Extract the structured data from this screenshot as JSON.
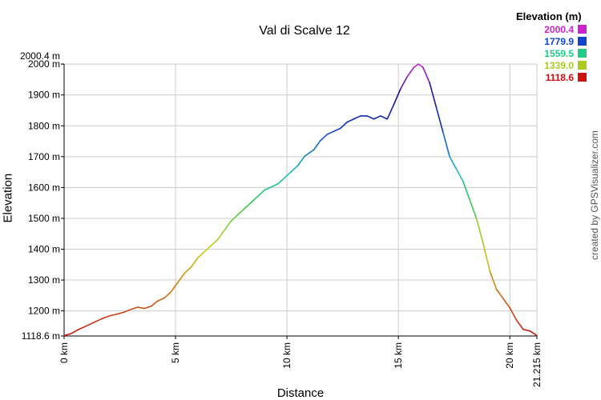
{
  "chart_data": {
    "type": "line",
    "title": "Val di Scalve 12",
    "xlabel": "Distance",
    "ylabel": "Elevation",
    "xlim": [
      0,
      21.215
    ],
    "ylim": [
      1118.6,
      2000.4
    ],
    "x_ticks": [
      {
        "value": 0,
        "label": "0 km"
      },
      {
        "value": 5,
        "label": "5 km"
      },
      {
        "value": 10,
        "label": "10 km"
      },
      {
        "value": 15,
        "label": "15 km"
      },
      {
        "value": 20,
        "label": "20 km"
      },
      {
        "value": 21.215,
        "label": "21.215 km"
      }
    ],
    "y_ticks": [
      {
        "value": 1118.6,
        "label": "1118.6 m"
      },
      {
        "value": 1200,
        "label": "1200 m"
      },
      {
        "value": 1300,
        "label": "1300 m"
      },
      {
        "value": 1400,
        "label": "1400 m"
      },
      {
        "value": 1500,
        "label": "1500 m"
      },
      {
        "value": 1600,
        "label": "1600 m"
      },
      {
        "value": 1700,
        "label": "1700 m"
      },
      {
        "value": 1800,
        "label": "1800 m"
      },
      {
        "value": 1900,
        "label": "1900 m"
      },
      {
        "value": 2000,
        "label": "2000 m"
      },
      {
        "value": 2000.4,
        "label": "2000.4 m"
      }
    ],
    "grid": true,
    "legend_position": "top-right",
    "legend": {
      "title": "Elevation (m)",
      "items": [
        {
          "value": "2000.4",
          "color": "#cc22cc"
        },
        {
          "value": "1779.9",
          "color": "#1144cc"
        },
        {
          "value": "1559.5",
          "color": "#22cc88"
        },
        {
          "value": "1339.0",
          "color": "#aacc22"
        },
        {
          "value": "1118.6",
          "color": "#cc1111"
        }
      ]
    },
    "series": [
      {
        "x": [
          0,
          0.3,
          0.6,
          0.9,
          1.2,
          1.5,
          1.8,
          2.1,
          2.4,
          2.7,
          3.0,
          3.3,
          3.6,
          3.9,
          4.2,
          4.5,
          4.8,
          5.1,
          5.4,
          5.7,
          6.0,
          6.3,
          6.6,
          6.9,
          7.2,
          7.5,
          7.8,
          8.1,
          8.4,
          8.7,
          9.0,
          9.3,
          9.6,
          9.9,
          10.2,
          10.5,
          10.8,
          11.0,
          11.2,
          11.5,
          11.8,
          12.1,
          12.4,
          12.7,
          13.0,
          13.3,
          13.6,
          13.9,
          14.2,
          14.5,
          14.8,
          15.1,
          15.4,
          15.7,
          15.9,
          16.1,
          16.4,
          16.7,
          17.0,
          17.3,
          17.6,
          17.9,
          18.2,
          18.5,
          18.8,
          19.1,
          19.4,
          19.7,
          20.0,
          20.3,
          20.6,
          20.9,
          21.215
        ],
        "y": [
          1120,
          1126,
          1138,
          1148,
          1158,
          1168,
          1178,
          1185,
          1190,
          1196,
          1205,
          1212,
          1208,
          1215,
          1232,
          1242,
          1262,
          1292,
          1322,
          1342,
          1372,
          1392,
          1412,
          1432,
          1462,
          1492,
          1512,
          1532,
          1552,
          1572,
          1592,
          1602,
          1612,
          1632,
          1652,
          1672,
          1702,
          1712,
          1722,
          1752,
          1772,
          1782,
          1792,
          1812,
          1822,
          1832,
          1832,
          1822,
          1832,
          1822,
          1870,
          1920,
          1960,
          1990,
          2000,
          1990,
          1940,
          1860,
          1780,
          1700,
          1660,
          1620,
          1560,
          1500,
          1420,
          1330,
          1270,
          1240,
          1210,
          1170,
          1140,
          1135,
          1120
        ]
      }
    ]
  },
  "credit": "created by GPSVisualizer.com"
}
